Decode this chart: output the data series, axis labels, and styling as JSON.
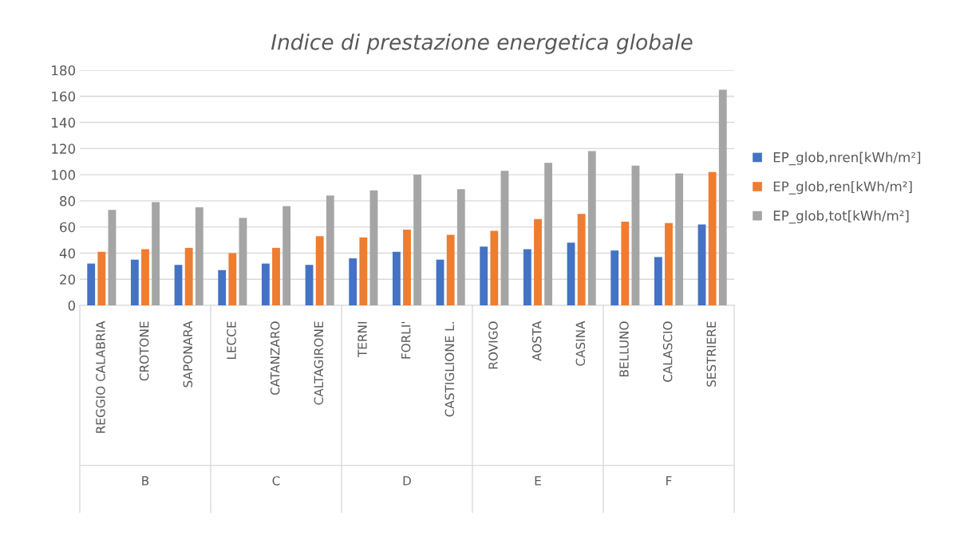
{
  "chart_data": {
    "type": "bar",
    "title": "Indice di prestazione energetica globale",
    "categories": [
      "REGGIO CALABRIA",
      "CROTONE",
      "SAPONARA",
      "LECCE",
      "CATANZARO",
      "CALTAGIRONE",
      "TERNI",
      "FORLI'",
      "CASTIGLIONE L.",
      "ROVIGO",
      "AOSTA",
      "CASINA",
      "BELLUNO",
      "CALASCIO",
      "SESTRIERE"
    ],
    "series": [
      {
        "name": "EP_glob,nren[kWh/m²]",
        "color": "#4472c4",
        "values": [
          32,
          35,
          31,
          27,
          32,
          31,
          36,
          41,
          35,
          45,
          43,
          48,
          42,
          37,
          62
        ]
      },
      {
        "name": "EP_glob,ren[kWh/m²]",
        "color": "#ed7d31",
        "values": [
          41,
          43,
          44,
          40,
          44,
          53,
          52,
          58,
          54,
          57,
          66,
          70,
          64,
          63,
          102
        ]
      },
      {
        "name": "EP_glob,tot[kWh/m²]",
        "color": "#a5a5a5",
        "values": [
          73,
          79,
          75,
          67,
          76,
          84,
          88,
          100,
          89,
          103,
          109,
          118,
          107,
          101,
          165
        ]
      }
    ],
    "annotations": [
      "B",
      "C",
      "D",
      "E",
      "F"
    ],
    "ylim": [
      0,
      180
    ],
    "yticks": [
      0,
      20,
      40,
      60,
      80,
      100,
      120,
      140,
      160,
      180
    ],
    "grid": "y",
    "legend": "right"
  }
}
